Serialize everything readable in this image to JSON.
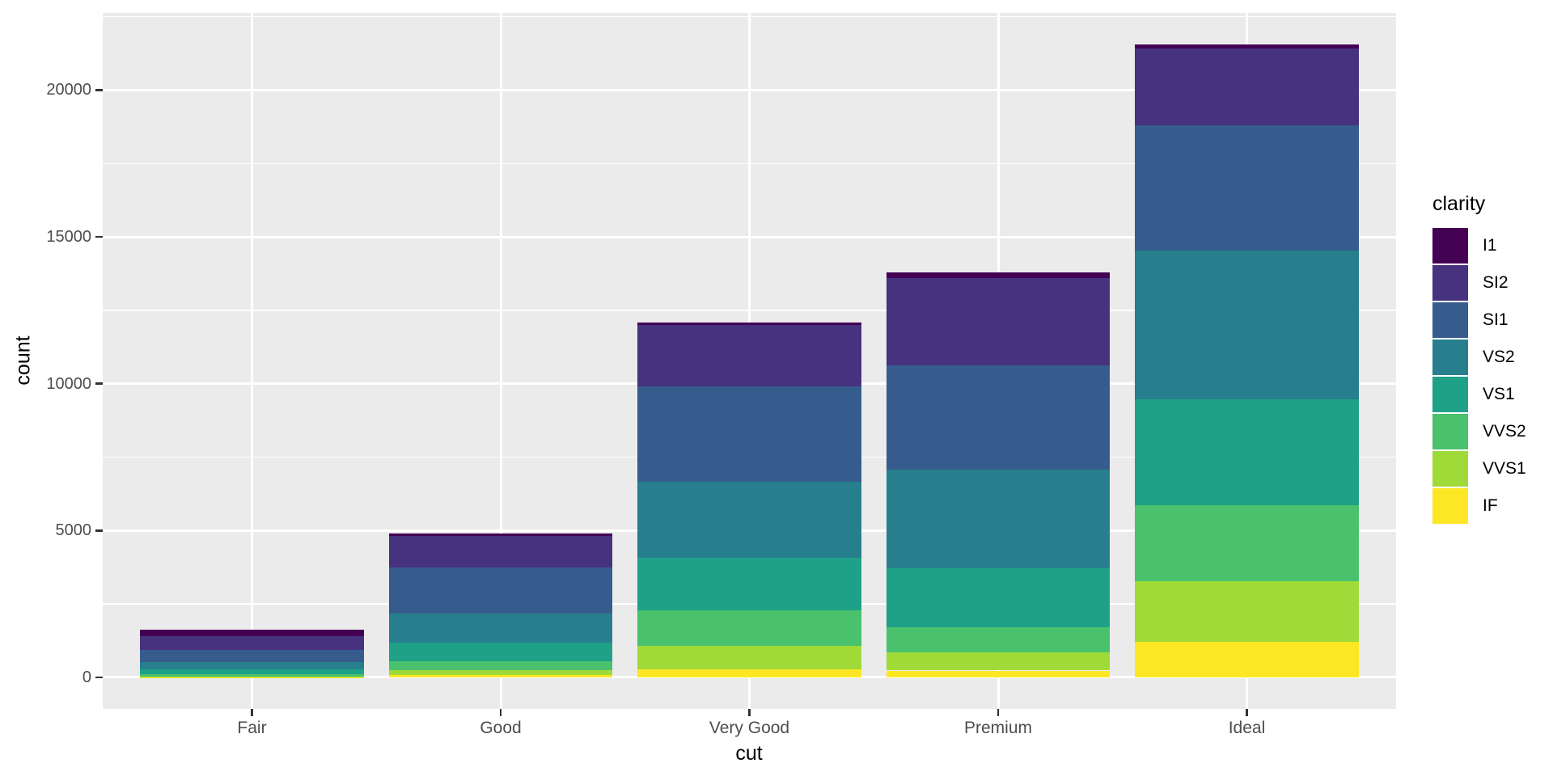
{
  "figure": {
    "background_color": "#FFFFFF",
    "panel_background_color": "#EBEBEB",
    "grid_color": "#FFFFFF",
    "tick_mark_color": "#333333",
    "axis_text_color": "#4D4D4D",
    "axis_title_color": "#000000"
  },
  "chart_data": {
    "type": "bar",
    "stacked": true,
    "title": "",
    "xlabel": "cut",
    "ylabel": "count",
    "categories": [
      "Fair",
      "Good",
      "Very Good",
      "Premium",
      "Ideal"
    ],
    "series": [
      {
        "name": "I1",
        "color": "#440154",
        "values": [
          210,
          96,
          84,
          205,
          146
        ]
      },
      {
        "name": "SI2",
        "color": "#46327E",
        "values": [
          466,
          1081,
          2100,
          2949,
          2598
        ]
      },
      {
        "name": "SI1",
        "color": "#365C8D",
        "values": [
          408,
          1560,
          3240,
          3575,
          4282
        ]
      },
      {
        "name": "VS2",
        "color": "#277F8E",
        "values": [
          261,
          978,
          2591,
          3357,
          5071
        ]
      },
      {
        "name": "VS1",
        "color": "#1FA187",
        "values": [
          170,
          648,
          1775,
          1989,
          3589
        ]
      },
      {
        "name": "VVS2",
        "color": "#4AC16D",
        "values": [
          69,
          286,
          1235,
          870,
          2606
        ]
      },
      {
        "name": "VVS1",
        "color": "#A0DA39",
        "values": [
          17,
          186,
          789,
          616,
          2047
        ]
      },
      {
        "name": "IF",
        "color": "#FDE725",
        "values": [
          9,
          71,
          268,
          230,
          1212
        ]
      }
    ],
    "stack_totals": [
      1610,
      4906,
      12082,
      13791,
      21551
    ],
    "y_major_ticks": [
      0,
      5000,
      10000,
      15000,
      20000
    ],
    "y_major_tick_labels": [
      "0",
      "5000",
      "10000",
      "15000",
      "20000"
    ],
    "y_minor_ticks": [
      2500,
      7500,
      12500,
      17500,
      22500
    ],
    "ylim": [
      -1077.55,
      22628.55
    ],
    "grid": "major-and-minor",
    "legend": {
      "position": "right",
      "title": "clarity",
      "labels": [
        "I1",
        "SI2",
        "SI1",
        "VS2",
        "VS1",
        "VVS2",
        "VVS1",
        "IF"
      ]
    }
  }
}
